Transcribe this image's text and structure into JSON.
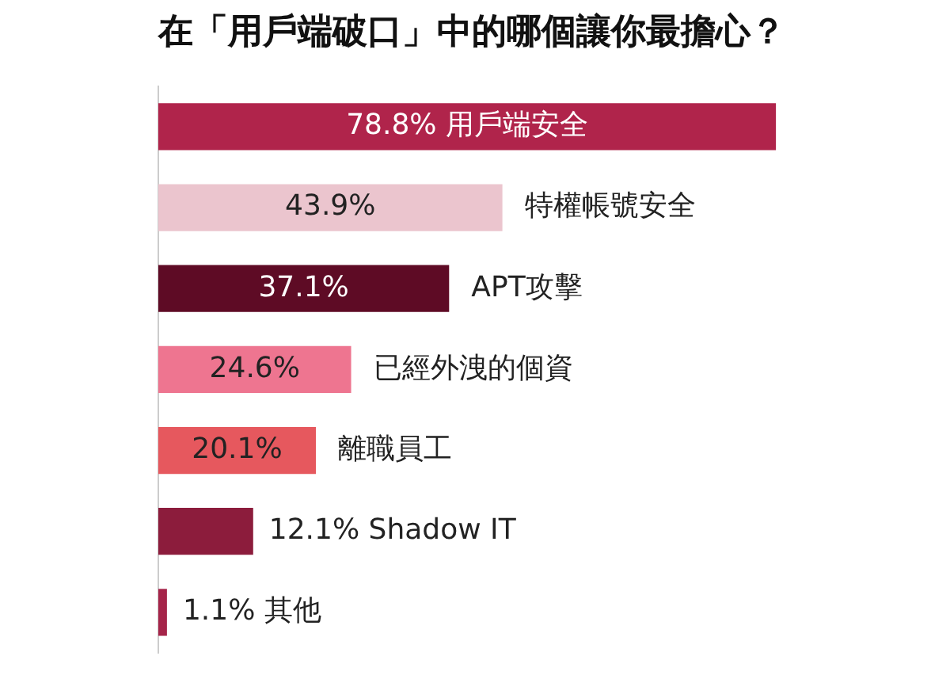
{
  "chart_data": {
    "type": "bar",
    "orientation": "horizontal",
    "title": "在「用戶端破口」中的哪個讓你最擔心？",
    "categories": [
      "用戶端安全",
      "特權帳號安全",
      "APT攻擊",
      "已經外洩的個資",
      "離職員工",
      "Shadow IT",
      "其他"
    ],
    "values": [
      78.8,
      43.9,
      37.1,
      24.6,
      20.1,
      12.1,
      1.1
    ],
    "value_labels": [
      "78.8%",
      "43.9%",
      "37.1%",
      "24.6%",
      "20.1%",
      "12.1%",
      "1.1%"
    ],
    "colors": [
      "#b0244b",
      "#ebc5ce",
      "#5e0b25",
      "#ee7590",
      "#e6585e",
      "#8c1c3c",
      "#a52449"
    ],
    "tick_labels": false,
    "grid": false,
    "legend": false
  }
}
